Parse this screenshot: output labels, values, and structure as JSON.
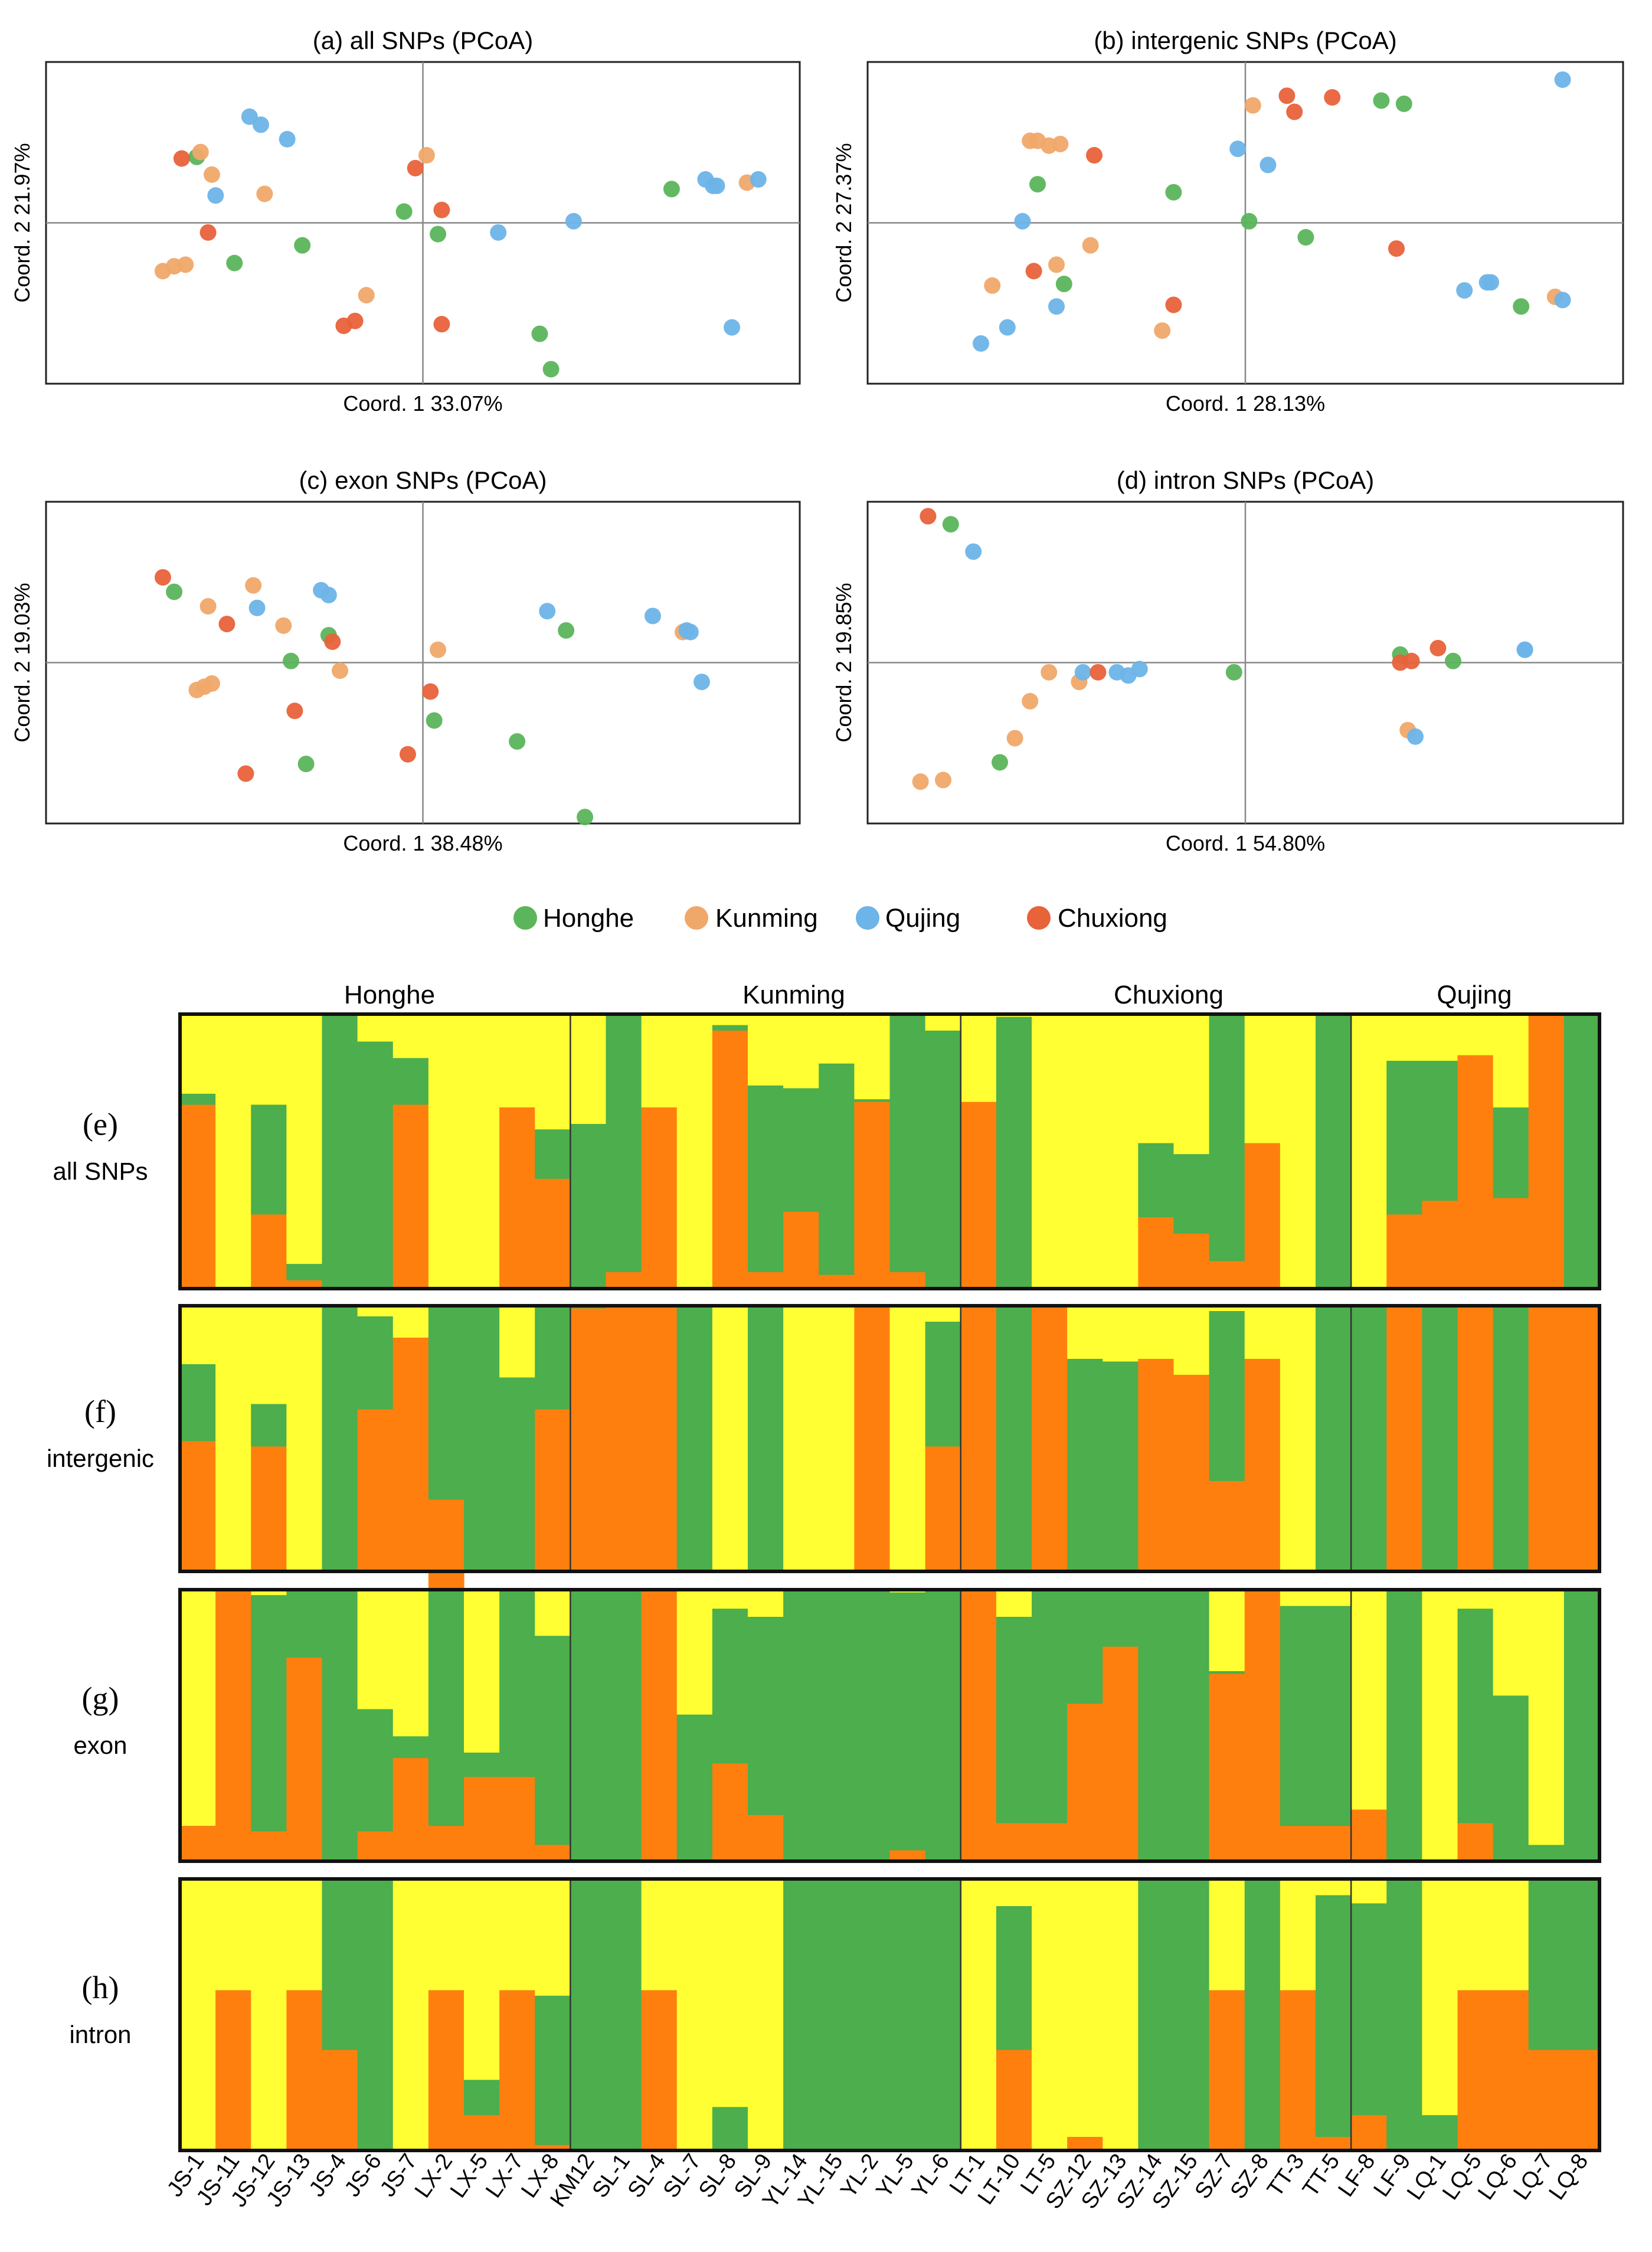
{
  "colors": {
    "honghe": "#5bb55b",
    "kunming": "#f0a86a",
    "qujing": "#6db4e8",
    "chuxiong": "#e8623a",
    "bar_green": "#4cae4c",
    "bar_yellow": "#ffff33",
    "bar_orange": "#ff7f0e",
    "axis": "#888888",
    "frame": "#222222"
  },
  "legend": {
    "items": [
      {
        "key": "honghe",
        "label": "Honghe"
      },
      {
        "key": "kunming",
        "label": "Kunming"
      },
      {
        "key": "qujing",
        "label": "Qujing"
      },
      {
        "key": "chuxiong",
        "label": "Chuxiong"
      }
    ]
  },
  "structure": {
    "groups": [
      "Honghe",
      "Kunming",
      "Chuxiong",
      "Qujing"
    ],
    "samples": [
      "JS-1",
      "JS-11",
      "JS-12",
      "JS-13",
      "JS-4",
      "JS-6",
      "JS-7",
      "LX-2",
      "LX-5",
      "LX-7",
      "LX-8",
      "KM12",
      "SL-1",
      "SL-4",
      "SL-7",
      "SL-8",
      "SL-9",
      "YL-14",
      "YL-15",
      "YL-2",
      "YL-5",
      "YL-6",
      "LT-1",
      "LT-10",
      "LT-5",
      "SZ-12",
      "SZ-13",
      "SZ-14",
      "SZ-15",
      "SZ-7",
      "SZ-8",
      "TT-3",
      "TT-5",
      "LF-8",
      "LF-9",
      "LQ-1",
      "LQ-5",
      "LQ-6",
      "LQ-7",
      "LQ-8"
    ]
  },
  "chart_data": [
    {
      "type": "scatter",
      "title": "(a) all SNPs (PCoA)",
      "xlabel": "Coord. 1",
      "xpct": "33.07%",
      "ylabel": "Coord. 2",
      "ypct": "21.97%",
      "xlim": [
        -1,
        1
      ],
      "ylim": [
        -1,
        1
      ],
      "points": [
        {
          "g": "honghe",
          "x": -0.6,
          "y": 0.41
        },
        {
          "g": "honghe",
          "x": -0.5,
          "y": -0.25
        },
        {
          "g": "honghe",
          "x": -0.32,
          "y": -0.14
        },
        {
          "g": "honghe",
          "x": -0.05,
          "y": 0.07
        },
        {
          "g": "honghe",
          "x": 0.04,
          "y": -0.07
        },
        {
          "g": "honghe",
          "x": 0.31,
          "y": -0.69
        },
        {
          "g": "honghe",
          "x": 0.34,
          "y": -0.91
        },
        {
          "g": "honghe",
          "x": 0.66,
          "y": 0.21
        },
        {
          "g": "kunming",
          "x": -0.59,
          "y": 0.44
        },
        {
          "g": "kunming",
          "x": -0.56,
          "y": 0.3
        },
        {
          "g": "kunming",
          "x": -0.42,
          "y": 0.18
        },
        {
          "g": "kunming",
          "x": -0.69,
          "y": -0.3
        },
        {
          "g": "kunming",
          "x": -0.66,
          "y": -0.27
        },
        {
          "g": "kunming",
          "x": -0.63,
          "y": -0.26
        },
        {
          "g": "kunming",
          "x": -0.15,
          "y": -0.45
        },
        {
          "g": "kunming",
          "x": 0.01,
          "y": 0.42
        },
        {
          "g": "kunming",
          "x": 0.86,
          "y": 0.25
        },
        {
          "g": "qujing",
          "x": -0.46,
          "y": 0.66
        },
        {
          "g": "qujing",
          "x": -0.43,
          "y": 0.61
        },
        {
          "g": "qujing",
          "x": -0.36,
          "y": 0.52
        },
        {
          "g": "qujing",
          "x": -0.55,
          "y": 0.17
        },
        {
          "g": "qujing",
          "x": 0.2,
          "y": -0.06
        },
        {
          "g": "qujing",
          "x": 0.4,
          "y": 0.01
        },
        {
          "g": "qujing",
          "x": 0.75,
          "y": 0.27
        },
        {
          "g": "qujing",
          "x": 0.77,
          "y": 0.23
        },
        {
          "g": "qujing",
          "x": 0.78,
          "y": 0.23
        },
        {
          "g": "qujing",
          "x": 0.89,
          "y": 0.27
        },
        {
          "g": "qujing",
          "x": 0.82,
          "y": -0.65
        },
        {
          "g": "chuxiong",
          "x": -0.64,
          "y": 0.4
        },
        {
          "g": "chuxiong",
          "x": -0.57,
          "y": -0.06
        },
        {
          "g": "chuxiong",
          "x": -0.02,
          "y": 0.34
        },
        {
          "g": "chuxiong",
          "x": 0.05,
          "y": 0.08
        },
        {
          "g": "chuxiong",
          "x": -0.21,
          "y": -0.64
        },
        {
          "g": "chuxiong",
          "x": -0.18,
          "y": -0.61
        },
        {
          "g": "chuxiong",
          "x": 0.05,
          "y": -0.63
        }
      ]
    },
    {
      "type": "scatter",
      "title": "(b) intergenic SNPs (PCoA)",
      "xlabel": "Coord. 1",
      "xpct": "28.13%",
      "ylabel": "Coord. 2",
      "ypct": "27.37%",
      "xlim": [
        -1,
        1
      ],
      "ylim": [
        -1,
        1
      ],
      "points": [
        {
          "g": "honghe",
          "x": 0.36,
          "y": 0.76
        },
        {
          "g": "honghe",
          "x": 0.42,
          "y": 0.74
        },
        {
          "g": "honghe",
          "x": -0.55,
          "y": 0.24
        },
        {
          "g": "honghe",
          "x": -0.19,
          "y": 0.19
        },
        {
          "g": "honghe",
          "x": 0.01,
          "y": 0.01
        },
        {
          "g": "honghe",
          "x": 0.16,
          "y": -0.09
        },
        {
          "g": "honghe",
          "x": -0.48,
          "y": -0.38
        },
        {
          "g": "honghe",
          "x": 0.73,
          "y": -0.52
        },
        {
          "g": "kunming",
          "x": -0.57,
          "y": 0.51
        },
        {
          "g": "kunming",
          "x": -0.55,
          "y": 0.51
        },
        {
          "g": "kunming",
          "x": -0.52,
          "y": 0.48
        },
        {
          "g": "kunming",
          "x": -0.49,
          "y": 0.49
        },
        {
          "g": "kunming",
          "x": 0.02,
          "y": 0.73
        },
        {
          "g": "kunming",
          "x": -0.41,
          "y": -0.14
        },
        {
          "g": "kunming",
          "x": -0.5,
          "y": -0.26
        },
        {
          "g": "kunming",
          "x": -0.67,
          "y": -0.39
        },
        {
          "g": "kunming",
          "x": -0.22,
          "y": -0.67
        },
        {
          "g": "kunming",
          "x": 0.82,
          "y": -0.46
        },
        {
          "g": "qujing",
          "x": 0.84,
          "y": 0.89
        },
        {
          "g": "qujing",
          "x": -0.02,
          "y": 0.46
        },
        {
          "g": "qujing",
          "x": 0.06,
          "y": 0.36
        },
        {
          "g": "qujing",
          "x": -0.59,
          "y": 0.01
        },
        {
          "g": "qujing",
          "x": -0.5,
          "y": -0.52
        },
        {
          "g": "qujing",
          "x": -0.63,
          "y": -0.65
        },
        {
          "g": "qujing",
          "x": -0.7,
          "y": -0.75
        },
        {
          "g": "qujing",
          "x": 0.58,
          "y": -0.42
        },
        {
          "g": "qujing",
          "x": 0.64,
          "y": -0.37
        },
        {
          "g": "qujing",
          "x": 0.65,
          "y": -0.37
        },
        {
          "g": "qujing",
          "x": 0.84,
          "y": -0.48
        },
        {
          "g": "chuxiong",
          "x": 0.11,
          "y": 0.79
        },
        {
          "g": "chuxiong",
          "x": 0.13,
          "y": 0.69
        },
        {
          "g": "chuxiong",
          "x": 0.23,
          "y": 0.78
        },
        {
          "g": "chuxiong",
          "x": -0.4,
          "y": 0.42
        },
        {
          "g": "chuxiong",
          "x": 0.4,
          "y": -0.16
        },
        {
          "g": "chuxiong",
          "x": -0.56,
          "y": -0.3
        },
        {
          "g": "chuxiong",
          "x": -0.19,
          "y": -0.51
        }
      ]
    },
    {
      "type": "scatter",
      "title": "(c) exon SNPs (PCoA)",
      "xlabel": "Coord. 1",
      "xpct": "38.48%",
      "ylabel": "Coord. 2",
      "ypct": "19.03%",
      "xlim": [
        -1,
        1
      ],
      "ylim": [
        -1,
        1
      ],
      "points": [
        {
          "g": "honghe",
          "x": -0.66,
          "y": 0.44
        },
        {
          "g": "honghe",
          "x": -0.25,
          "y": 0.17
        },
        {
          "g": "honghe",
          "x": -0.35,
          "y": 0.01
        },
        {
          "g": "honghe",
          "x": 0.03,
          "y": -0.36
        },
        {
          "g": "honghe",
          "x": 0.38,
          "y": 0.2
        },
        {
          "g": "honghe",
          "x": 0.25,
          "y": -0.49
        },
        {
          "g": "honghe",
          "x": -0.31,
          "y": -0.63
        },
        {
          "g": "honghe",
          "x": 0.43,
          "y": -0.96
        },
        {
          "g": "kunming",
          "x": -0.57,
          "y": 0.35
        },
        {
          "g": "kunming",
          "x": -0.45,
          "y": 0.48
        },
        {
          "g": "kunming",
          "x": -0.37,
          "y": 0.23
        },
        {
          "g": "kunming",
          "x": -0.22,
          "y": -0.05
        },
        {
          "g": "kunming",
          "x": -0.6,
          "y": -0.17
        },
        {
          "g": "kunming",
          "x": -0.58,
          "y": -0.15
        },
        {
          "g": "kunming",
          "x": -0.56,
          "y": -0.13
        },
        {
          "g": "kunming",
          "x": 0.04,
          "y": 0.08
        },
        {
          "g": "kunming",
          "x": 0.69,
          "y": 0.19
        },
        {
          "g": "qujing",
          "x": -0.44,
          "y": 0.34
        },
        {
          "g": "qujing",
          "x": -0.27,
          "y": 0.45
        },
        {
          "g": "qujing",
          "x": -0.25,
          "y": 0.42
        },
        {
          "g": "qujing",
          "x": 0.33,
          "y": 0.32
        },
        {
          "g": "qujing",
          "x": 0.61,
          "y": 0.29
        },
        {
          "g": "qujing",
          "x": 0.7,
          "y": 0.2
        },
        {
          "g": "qujing",
          "x": 0.71,
          "y": 0.19
        },
        {
          "g": "qujing",
          "x": 0.74,
          "y": -0.12
        },
        {
          "g": "chuxiong",
          "x": -0.69,
          "y": 0.53
        },
        {
          "g": "chuxiong",
          "x": -0.52,
          "y": 0.24
        },
        {
          "g": "chuxiong",
          "x": -0.24,
          "y": 0.13
        },
        {
          "g": "chuxiong",
          "x": 0.02,
          "y": -0.18
        },
        {
          "g": "chuxiong",
          "x": -0.34,
          "y": -0.3
        },
        {
          "g": "chuxiong",
          "x": -0.04,
          "y": -0.57
        },
        {
          "g": "chuxiong",
          "x": -0.47,
          "y": -0.69
        }
      ]
    },
    {
      "type": "scatter",
      "title": "(d) intron SNPs (PCoA)",
      "xlabel": "Coord. 1",
      "xpct": "54.80%",
      "ylabel": "Coord. 2",
      "ypct": "19.85%",
      "xlim": [
        -1,
        1
      ],
      "ylim": [
        -1,
        1
      ],
      "points": [
        {
          "g": "honghe",
          "x": -0.78,
          "y": 0.86
        },
        {
          "g": "honghe",
          "x": -0.03,
          "y": -0.06
        },
        {
          "g": "honghe",
          "x": 0.41,
          "y": 0.05
        },
        {
          "g": "honghe",
          "x": 0.55,
          "y": 0.01
        },
        {
          "g": "honghe",
          "x": -0.65,
          "y": -0.62
        },
        {
          "g": "kunming",
          "x": -0.86,
          "y": -0.74
        },
        {
          "g": "kunming",
          "x": -0.8,
          "y": -0.73
        },
        {
          "g": "kunming",
          "x": -0.61,
          "y": -0.47
        },
        {
          "g": "kunming",
          "x": -0.57,
          "y": -0.24
        },
        {
          "g": "kunming",
          "x": -0.52,
          "y": -0.06
        },
        {
          "g": "kunming",
          "x": -0.44,
          "y": -0.12
        },
        {
          "g": "kunming",
          "x": 0.43,
          "y": -0.42
        },
        {
          "g": "qujing",
          "x": -0.72,
          "y": 0.69
        },
        {
          "g": "qujing",
          "x": -0.43,
          "y": -0.06
        },
        {
          "g": "qujing",
          "x": -0.34,
          "y": -0.06
        },
        {
          "g": "qujing",
          "x": -0.31,
          "y": -0.08
        },
        {
          "g": "qujing",
          "x": -0.28,
          "y": -0.04
        },
        {
          "g": "qujing",
          "x": 0.45,
          "y": -0.46
        },
        {
          "g": "qujing",
          "x": 0.74,
          "y": 0.08
        },
        {
          "g": "qujing",
          "x": 0.74,
          "y": 0.08
        },
        {
          "g": "chuxiong",
          "x": -0.84,
          "y": 0.91
        },
        {
          "g": "chuxiong",
          "x": -0.39,
          "y": -0.06
        },
        {
          "g": "chuxiong",
          "x": 0.41,
          "y": 0.0
        },
        {
          "g": "chuxiong",
          "x": 0.44,
          "y": 0.01
        },
        {
          "g": "chuxiong",
          "x": 0.51,
          "y": 0.09
        }
      ]
    },
    {
      "type": "bar",
      "stacked": true,
      "title": "(e)",
      "subtitle": "all SNPs",
      "categories_ref": "structure.samples",
      "series_order": [
        "orange",
        "green",
        "yellow"
      ],
      "orange": [
        0.67,
        0,
        0.27,
        0.03,
        0,
        0,
        0.67,
        0,
        0,
        0.66,
        0.4,
        0,
        0.06,
        0.66,
        0,
        0.94,
        0.06,
        0.28,
        0.05,
        0.68,
        0.06,
        0,
        0.68,
        0,
        0,
        0,
        0,
        0.26,
        0.2,
        0.1,
        0.53,
        0,
        0,
        0,
        0.27,
        0.32,
        0.85,
        0.33,
        1,
        0
      ],
      "green": [
        0.04,
        0,
        0.4,
        0.06,
        1,
        0.9,
        0.17,
        0,
        0,
        0,
        0.18,
        0.6,
        0.94,
        0,
        0,
        0.02,
        0.68,
        0.45,
        0.77,
        0.01,
        0.94,
        0.94,
        0,
        0.99,
        0,
        0,
        0,
        0.27,
        0.29,
        0.9,
        0,
        0,
        1,
        0,
        0.56,
        0.51,
        0,
        0.33,
        0,
        1
      ]
    },
    {
      "type": "bar",
      "stacked": true,
      "title": "(f)",
      "subtitle": "intergenic",
      "categories_ref": "structure.samples",
      "series_order": [
        "orange",
        "green",
        "yellow"
      ],
      "orange": [
        0.49,
        0,
        0.47,
        0,
        0,
        0.61,
        0.88,
        0.34,
        0,
        0,
        0.61,
        0.99,
        1,
        1,
        0,
        0,
        0,
        0,
        0,
        1,
        0,
        0.47,
        1,
        0,
        1,
        0,
        0,
        0.8,
        0.74,
        0.34,
        0.8,
        0,
        0,
        0,
        1,
        0,
        1,
        0,
        1,
        1
      ],
      "green": [
        0.29,
        0,
        0.16,
        0,
        1,
        0.35,
        0,
        0.73,
        1,
        0.73,
        0.39,
        0.01,
        0,
        0,
        1,
        0,
        1,
        0,
        0,
        0,
        0,
        0.47,
        0,
        1,
        0,
        0.8,
        0.79,
        0,
        0,
        0.64,
        0,
        0,
        1,
        1,
        0,
        1,
        0,
        1,
        0,
        0
      ]
    },
    {
      "type": "bar",
      "stacked": true,
      "title": "(g)",
      "subtitle": "exon",
      "categories_ref": "structure.samples",
      "series_order": [
        "orange",
        "green",
        "yellow"
      ],
      "orange": [
        0.13,
        1,
        0.11,
        0.75,
        0,
        0.11,
        0.38,
        0.13,
        0.31,
        0.31,
        0.06,
        0,
        0,
        1,
        0,
        0.36,
        0.17,
        0,
        0,
        0,
        0.04,
        0,
        1,
        0.14,
        0.14,
        0.58,
        0.79,
        0,
        0,
        0.69,
        1,
        0.13,
        0.13,
        0.19,
        0,
        0,
        0.14,
        0,
        0,
        0
      ],
      "green": [
        0,
        0,
        0.87,
        0.25,
        1,
        0.45,
        0.08,
        0.87,
        0.09,
        0.69,
        0.77,
        1,
        1,
        0,
        0.54,
        0.57,
        0.73,
        1,
        1,
        1,
        0.95,
        1,
        0,
        0.76,
        0.86,
        0.42,
        0.21,
        1,
        1,
        0.01,
        0,
        0.81,
        0.81,
        0,
        1,
        0,
        0.79,
        0.61,
        0.06,
        1
      ]
    },
    {
      "type": "bar",
      "stacked": true,
      "title": "(h)",
      "subtitle": "intron",
      "categories_ref": "structure.samples",
      "series_order": [
        "orange",
        "green",
        "yellow"
      ],
      "orange": [
        0,
        0.59,
        0,
        0.59,
        0.37,
        0,
        0,
        0.59,
        0.13,
        0.59,
        0.02,
        0,
        0,
        0.59,
        0,
        0,
        0,
        0,
        0,
        0,
        0,
        0,
        0,
        0.37,
        0,
        0.05,
        0,
        0,
        0,
        0.59,
        0,
        0.59,
        0.05,
        0.13,
        0,
        0,
        0.59,
        0.59,
        0.37,
        0.37
      ],
      "green": [
        0,
        0,
        0,
        0,
        0.63,
        1,
        0,
        0,
        0.13,
        0,
        0.55,
        1,
        1,
        0,
        0,
        0.16,
        0,
        1,
        1,
        1,
        1,
        1,
        0,
        0.53,
        0,
        0,
        0,
        1,
        1,
        0,
        1,
        0,
        0.89,
        0.78,
        1,
        0.13,
        0,
        0,
        0.63,
        0.63
      ]
    }
  ]
}
